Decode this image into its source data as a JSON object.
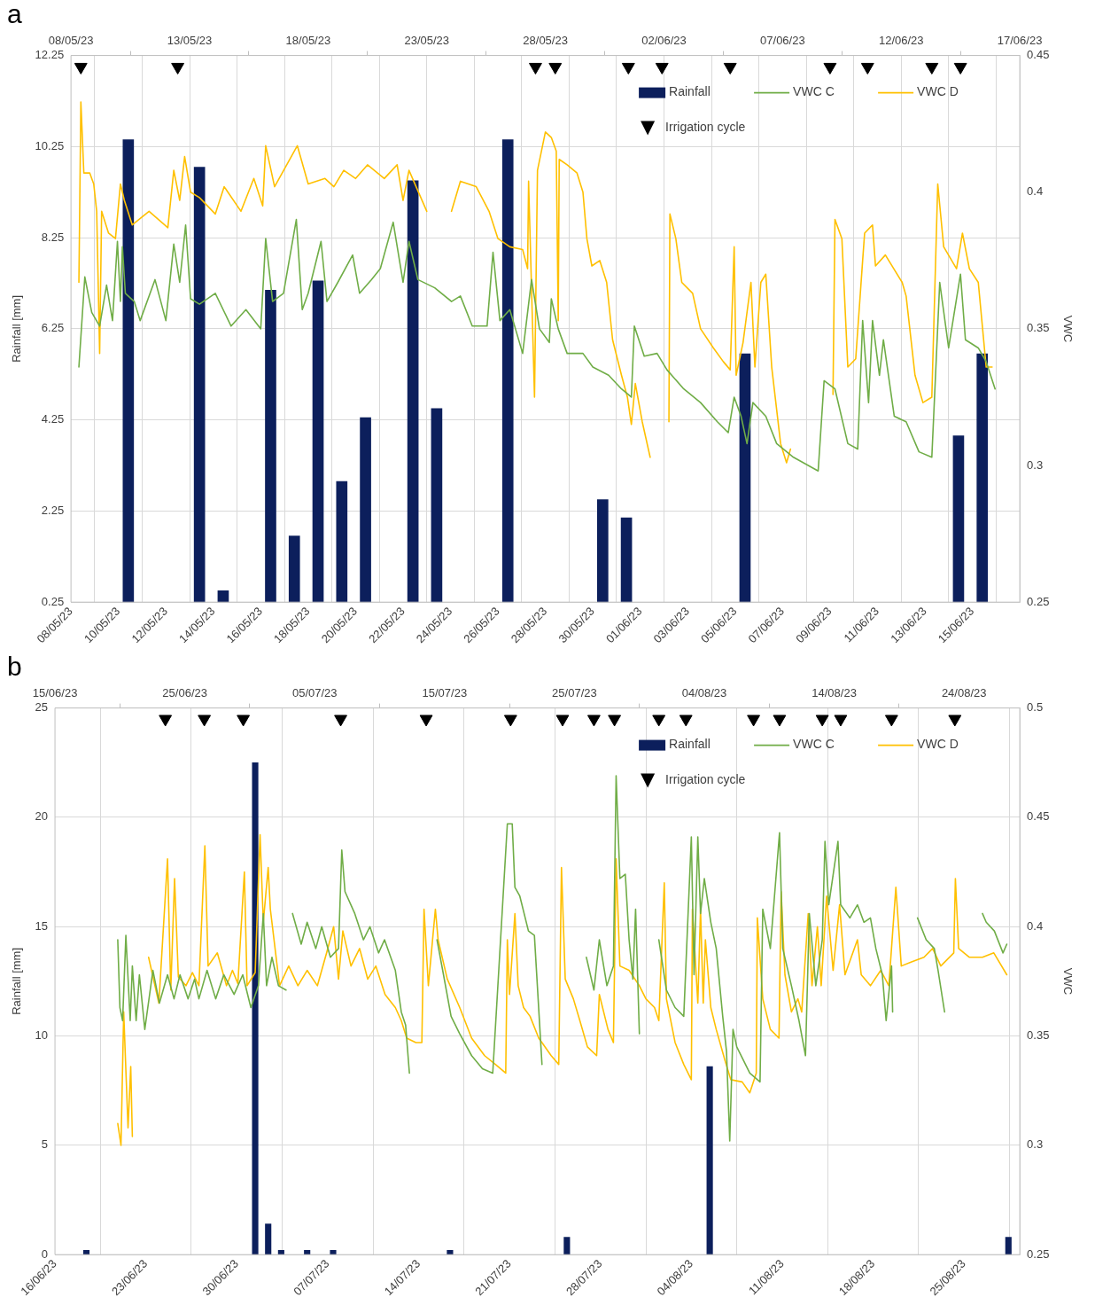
{
  "chart_data": [
    {
      "type": "bar",
      "title": "a",
      "ylabel": "Rainfall [mm]",
      "y2label": "VWC",
      "legend": "top right",
      "grid": true,
      "xlim": [
        "--05-08",
        "--06-17"
      ],
      "xticks": [
        {
          "value": "--05-08",
          "label": "08/05/23"
        },
        {
          "value": "--05-10",
          "label": "10/05/23"
        },
        {
          "value": "--05-12",
          "label": "12/05/23"
        },
        {
          "value": "--05-14",
          "label": "14/05/23"
        },
        {
          "value": "--05-16",
          "label": "16/05/23"
        },
        {
          "value": "--05-18",
          "label": "18/05/23"
        },
        {
          "value": "--05-20",
          "label": "20/05/23"
        },
        {
          "value": "--05-22",
          "label": "22/05/23"
        },
        {
          "value": "--05-24",
          "label": "24/05/23"
        },
        {
          "value": "--05-26",
          "label": "26/05/23"
        },
        {
          "value": "--05-28",
          "label": "28/05/23"
        },
        {
          "value": "--05-30",
          "label": "30/05/23"
        },
        {
          "value": "--06-01",
          "label": "01/06/23"
        },
        {
          "value": "--06-03",
          "label": "03/06/23"
        },
        {
          "value": "--06-05",
          "label": "05/06/23"
        },
        {
          "value": "--06-07",
          "label": "07/06/23"
        },
        {
          "value": "--06-09",
          "label": "09/06/23"
        },
        {
          "value": "--06-11",
          "label": "11/06/23"
        },
        {
          "value": "--06-13",
          "label": "13/06/23"
        },
        {
          "value": "--06-15",
          "label": "15/06/23"
        }
      ],
      "x2lim": [
        "--05-08",
        "--06-17"
      ],
      "x2ticks": [
        {
          "value": "--05-08",
          "label": "08/05/23"
        },
        {
          "value": "--05-13",
          "label": "13/05/23"
        },
        {
          "value": "--05-18",
          "label": "18/05/23"
        },
        {
          "value": "--05-23",
          "label": "23/05/23"
        },
        {
          "value": "--05-28",
          "label": "28/05/23"
        },
        {
          "value": "--06-02",
          "label": "02/06/23"
        },
        {
          "value": "--06-07",
          "label": "07/06/23"
        },
        {
          "value": "--06-12",
          "label": "12/06/23"
        },
        {
          "value": "--06-17",
          "label": "17/06/23"
        }
      ],
      "ylim": [
        0.25,
        12.25
      ],
      "yticks": [
        0.25,
        2.25,
        4.25,
        6.25,
        8.25,
        10.25,
        12.25
      ],
      "y2lim": [
        0.25,
        0.45
      ],
      "y2ticks": [
        0.25,
        0.3,
        0.35,
        0.4,
        0.45
      ],
      "series": [
        {
          "name": "Rainfall",
          "type": "bar",
          "color": "#0c1f5c",
          "x": [
            "--05-10T10:00",
            "--05-13T10:00",
            "--05-14T10:00",
            "--05-16T10:00",
            "--05-17T10:00",
            "--05-18T10:00",
            "--05-19T10:00",
            "--05-20T10:00",
            "--05-22T10:00",
            "--05-23T10:00",
            "--05-26T10:00",
            "--05-30T10:00",
            "--05-31T10:00",
            "--06-05T10:00",
            "--06-14T10:00",
            "--06-15T10:00"
          ],
          "values": [
            10.4,
            9.8,
            0.5,
            7.1,
            1.7,
            7.3,
            2.9,
            4.3,
            9.5,
            4.5,
            10.4,
            2.5,
            2.1,
            5.7,
            3.9,
            5.7
          ]
        },
        {
          "name": "VWC C",
          "type": "line",
          "axis": "y2",
          "color": "#70ad47",
          "x": [
            "--05-08T08:00",
            "--05-08T14:00",
            "--05-08T21:00",
            "--05-09T05:00",
            "--05-09T12:00",
            "--05-09T18:00",
            "--05-09T23:00",
            "--05-10T02:00",
            "--05-10T04:00",
            "--05-10T07:00",
            "--05-10T16:00",
            "--05-10T22:00",
            "--05-11T13:00",
            "--05-12T00:00",
            "--05-12T08:00",
            "--05-12T14:00",
            "--05-12T20:00",
            "--05-13T01:00",
            "--05-13T10:00",
            "--05-14T02:00",
            "--05-14T18:00",
            "--05-15T09:00",
            "--05-16T00:00",
            "--05-16T05:00",
            "--05-16T12:00",
            "--05-16T23:00",
            "--05-17T12:00",
            "--05-17T18:00",
            "--05-18T00:00",
            "--05-18T13:00",
            "--05-18T19:00",
            "--05-19T06:00",
            "--05-19T21:00",
            "--05-20T04:00",
            "--05-20T16:00",
            "--05-21T01:00",
            "--05-21T14:00",
            "--05-22T00:00",
            "--05-22T06:00",
            "--05-22T15:00",
            "--05-23T08:00",
            "--05-24T01:00",
            "--05-24T10:00",
            "--05-24T22:00",
            "--05-25T13:00",
            "--05-25T19:00",
            "--05-26T02:00",
            "--05-26T12:00",
            "--05-27T01:00",
            "--05-27T10:00",
            "--05-27T18:00",
            "--05-28T04:00",
            "--05-28T06:00",
            "--05-28T13:00",
            "--05-28T22:00",
            "--05-29T14:00",
            "--05-30T00:00",
            "--05-30T16:00",
            "--05-31T05:00",
            "--05-31T15:00",
            "--05-31T18:00",
            "--06-01T04:00",
            "--06-01T17:00",
            "--06-02T03:00",
            "--06-02T20:00",
            "--06-03T13:00",
            "--06-04T06:00",
            "--06-04T17:00",
            "--06-04T23:00",
            "--06-05T06:00",
            "--06-05T12:00",
            "--06-05T18:00",
            "--06-06T07:00",
            "--06-06T18:00",
            "--06-07T11:00",
            "--06-08T12:00",
            "--06-08T18:00",
            "--06-09T05:00",
            "--06-09T18:00",
            "--06-10T04:00",
            "--06-10T09:00",
            "--06-10T15:00",
            "--06-10T19:00",
            "--06-11T02:00",
            "--06-11T06:00",
            "--06-11T17:00",
            "--06-12T05:00",
            "--06-12T18:00",
            "--06-13T07:00",
            "--06-13T15:00",
            "--06-14T00:00",
            "--06-14T12:00",
            "--06-14T17:00",
            "--06-15T06:00",
            "--06-15T14:00",
            "--06-15T23:00"
          ],
          "values": [
            0.336,
            0.369,
            0.356,
            0.351,
            0.366,
            0.353,
            0.382,
            0.36,
            0.38,
            0.363,
            0.36,
            0.353,
            0.368,
            0.353,
            0.381,
            0.367,
            0.388,
            0.361,
            0.359,
            0.363,
            0.351,
            0.357,
            0.35,
            0.383,
            0.36,
            0.363,
            0.39,
            0.357,
            0.363,
            0.382,
            0.36,
            0.367,
            0.377,
            0.363,
            0.368,
            0.372,
            0.389,
            0.367,
            0.382,
            0.368,
            0.365,
            0.36,
            0.362,
            0.351,
            0.351,
            0.378,
            0.353,
            0.357,
            0.341,
            0.368,
            0.35,
            0.345,
            0.361,
            0.35,
            0.341,
            0.341,
            0.336,
            0.333,
            0.328,
            0.325,
            0.351,
            0.34,
            0.341,
            0.335,
            0.328,
            0.323,
            0.316,
            0.312,
            0.325,
            0.318,
            0.308,
            0.323,
            0.318,
            0.308,
            0.303,
            0.298,
            0.331,
            0.328,
            0.308,
            0.306,
            0.353,
            0.323,
            0.353,
            0.333,
            0.346,
            0.318,
            0.316,
            0.305,
            0.303,
            0.367,
            0.343,
            0.37,
            0.346,
            0.343,
            0.338,
            0.328
          ]
        },
        {
          "name": "VWC D",
          "type": "line",
          "axis": "y2",
          "color": "#ffc000",
          "x": [
            "--05-08T08:00",
            "--05-08T10:00",
            "--05-08T13:00",
            "--05-08T19:00",
            "--05-08T23:00",
            "--05-09T02:00",
            "--05-09T05:00",
            "--05-09T07:00",
            "--05-09T14:00",
            "--05-09T21:00",
            "--05-10T02:00",
            "--05-10T06:00",
            "--05-10T14:00",
            "--05-11T07:00",
            "--05-12T02:00",
            "--05-12T08:00",
            "--05-12T14:00",
            "--05-12T19:00",
            "--05-13T01:00",
            "--05-13T10:00",
            "--05-14T02:00",
            "--05-14T11:00",
            "--05-15T04:00",
            "--05-15T17:00",
            "--05-16T02:00",
            "--05-16T05:00",
            "--05-16T14:00",
            "--05-17T13:00",
            "--05-18T00:00",
            "--05-18T17:00",
            "--05-19T02:00",
            "--05-19T12:00",
            "--05-20T00:00",
            "--05-20T12:00",
            "--05-21T05:00",
            "--05-21T18:00",
            "--05-22T00:00",
            "--05-22T06:00",
            "--05-23T00:00",
            "--05-23T12:00",
            "--05-24T01:00",
            "--05-24T10:00",
            "--05-25T02:00",
            "--05-25T15:00",
            "--05-26T00:00",
            "--05-26T12:00",
            "--05-27T01:00",
            "--05-27T06:00",
            "--05-27T07:00",
            "--05-27T13:00",
            "--05-27T16:00",
            "--05-28T00:00",
            "--05-28T06:00",
            "--05-28T11:00",
            "--05-28T13:00",
            "--05-28T14:00",
            "--05-28T22:00",
            "--05-29T08:00",
            "--05-29T14:00",
            "--05-29T18:00",
            "--05-29T23:00",
            "--05-30T07:00",
            "--05-30T14:00",
            "--05-30T20:00",
            "--05-31T05:00",
            "--05-31T11:00",
            "--05-31T15:00",
            "--05-31T19:00",
            "--06-01T02:00",
            "--06-01T10:00",
            "--06-01T19:00",
            "--06-02T05:00",
            "--06-02T06:00",
            "--06-02T12:00",
            "--06-02T18:00",
            "--06-03T05:00",
            "--06-03T13:00",
            "--06-04T02:00",
            "--06-04T12:00",
            "--06-04T19:00",
            "--06-04T23:00",
            "--06-05T01:00",
            "--06-05T08:00",
            "--06-05T16:00",
            "--06-05T20:00",
            "--06-06T02:00",
            "--06-06T07:00",
            "--06-06T13:00",
            "--06-06T22:00",
            "--06-07T04:00",
            "--06-07T08:00",
            "--06-08T05:00",
            "--06-09T03:00",
            "--06-09T05:00",
            "--06-09T12:00",
            "--06-09T18:00",
            "--06-10T02:00",
            "--06-10T09:00",
            "--06-10T11:00",
            "--06-10T19:00",
            "--06-10T22:00",
            "--06-11T08:00",
            "--06-12T01:00",
            "--06-12T05:00",
            "--06-12T14:00",
            "--06-12T22:00",
            "--06-13T07:00",
            "--06-13T13:00",
            "--06-13T19:00",
            "--06-14T08:00",
            "--06-14T14:00",
            "--06-14T21:00",
            "--06-15T06:00",
            "--06-15T14:00",
            "--06-15T20:00"
          ],
          "values": [
            0.367,
            0.433,
            0.407,
            0.407,
            0.403,
            0.393,
            0.341,
            0.393,
            0.385,
            0.383,
            0.403,
            0.397,
            0.388,
            0.393,
            0.387,
            0.408,
            0.397,
            0.413,
            0.4,
            0.398,
            0.392,
            0.402,
            0.393,
            0.405,
            0.395,
            0.417,
            0.402,
            0.417,
            0.403,
            0.405,
            0.402,
            0.408,
            0.405,
            0.41,
            0.405,
            0.41,
            0.397,
            0.408,
            0.393,
            null,
            0.393,
            0.404,
            0.402,
            0.393,
            0.383,
            0.38,
            0.379,
            0.372,
            0.404,
            0.325,
            0.408,
            0.422,
            0.42,
            0.415,
            0.353,
            0.412,
            0.41,
            0.407,
            0.4,
            0.383,
            0.373,
            0.375,
            0.367,
            0.346,
            0.333,
            0.325,
            0.315,
            0.33,
            0.316,
            0.303,
            null,
            0.316,
            0.392,
            0.383,
            0.367,
            0.363,
            0.35,
            0.343,
            0.338,
            0.335,
            0.38,
            0.333,
            0.345,
            0.367,
            0.336,
            0.367,
            0.37,
            0.336,
            0.308,
            0.301,
            0.306,
            null,
            0.326,
            0.39,
            0.383,
            0.336,
            0.339,
            0.375,
            0.385,
            0.388,
            0.373,
            0.377,
            0.367,
            0.362,
            0.333,
            0.323,
            0.325,
            0.403,
            0.38,
            0.372,
            0.385,
            0.372,
            0.367,
            0.336,
            0.336
          ]
        },
        {
          "name": "Irrigation cycle",
          "type": "scatter",
          "marker": "triangle",
          "color": "#000000",
          "x": [
            "--05-08T10:00",
            "--05-12T12:00",
            "--05-27T14:00",
            "--05-28T10:00",
            "--05-31T12:00",
            "--06-01T22:00",
            "--06-04T19:00",
            "--06-09T00:00",
            "--06-10T14:00",
            "--06-13T07:00",
            "--06-14T12:00"
          ],
          "values": [
            12,
            12,
            12,
            12,
            12,
            12,
            12,
            12,
            12,
            12,
            12
          ]
        }
      ]
    },
    {
      "type": "bar",
      "title": "b",
      "ylabel": "Rainfall [mm]",
      "y2label": "VWC",
      "legend": "top right",
      "grid": true,
      "xlim": [
        "--06-16",
        "--08-29T07:00"
      ],
      "xticks": [
        {
          "value": "--06-16",
          "label": "16/06/23"
        },
        {
          "value": "--06-23",
          "label": "23/06/23"
        },
        {
          "value": "--06-30",
          "label": "30/06/23"
        },
        {
          "value": "--07-07",
          "label": "07/07/23"
        },
        {
          "value": "--07-14",
          "label": "14/07/23"
        },
        {
          "value": "--07-21",
          "label": "21/07/23"
        },
        {
          "value": "--07-28",
          "label": "28/07/23"
        },
        {
          "value": "--08-04",
          "label": "04/08/23"
        },
        {
          "value": "--08-11",
          "label": "11/08/23"
        },
        {
          "value": "--08-18",
          "label": "18/08/23"
        },
        {
          "value": "--08-25",
          "label": "25/08/23"
        }
      ],
      "x2lim": [
        "--06-15",
        "--08-28T07:00"
      ],
      "x2ticks": [
        {
          "value": "--06-15",
          "label": "15/06/23"
        },
        {
          "value": "--06-25",
          "label": "25/06/23"
        },
        {
          "value": "--07-05",
          "label": "05/07/23"
        },
        {
          "value": "--07-15",
          "label": "15/07/23"
        },
        {
          "value": "--07-25",
          "label": "25/07/23"
        },
        {
          "value": "--08-04",
          "label": "04/08/23"
        },
        {
          "value": "--08-14",
          "label": "14/08/23"
        },
        {
          "value": "--08-24",
          "label": "24/08/23"
        }
      ],
      "ylim": [
        0,
        25
      ],
      "yticks": [
        0,
        5,
        10,
        15,
        20,
        25
      ],
      "y2lim": [
        0.25,
        0.5
      ],
      "y2ticks": [
        0.25,
        0.3,
        0.35,
        0.4,
        0.45,
        0.5
      ],
      "series": [
        {
          "name": "Rainfall",
          "type": "bar",
          "color": "#0c1f5c",
          "x": [
            "--06-18T10:00",
            "--07-01T10:00",
            "--07-02T10:00",
            "--07-03T10:00",
            "--07-05T10:00",
            "--07-07T10:00",
            "--07-16T10:00",
            "--07-25T10:00",
            "--08-05T10:00",
            "--08-28T10:00"
          ],
          "values": [
            0.2,
            22.5,
            1.4,
            0.2,
            0.2,
            0.2,
            0.2,
            0.8,
            8.6,
            0.8
          ]
        },
        {
          "name": "VWC C",
          "type": "line",
          "axis": "y2",
          "color": "#70ad47",
          "x": [
            "--06-20T20:00",
            "--06-21T00:00",
            "--06-21T05:00",
            "--06-21T11:00",
            "--06-21T19:00",
            "--06-21T23:00",
            "--06-22T06:00",
            "--06-22T12:00",
            "--06-22T22:00",
            "--06-23T13:00",
            "--06-24T01:00",
            "--06-24T16:00",
            "--06-25T04:00",
            "--06-25T15:00",
            "--06-26T06:00",
            "--06-26T18:00",
            "--06-27T02:00",
            "--06-27T17:00",
            "--06-28T09:00",
            "--06-29T00:00",
            "--06-29T19:00",
            "--06-30T11:00",
            "--07-01T02:00",
            "--07-01T16:00",
            "--07-02T01:00",
            "--07-02T07:00",
            "--07-02T17:00",
            "--07-03T05:00",
            "--07-03T19:00",
            "--07-04T00:00",
            "--07-04T07:00",
            "--07-04T23:00",
            "--07-05T10:00",
            "--07-06T02:00",
            "--07-06T13:00",
            "--07-07T05:00",
            "--07-07T20:00",
            "--07-08T02:00",
            "--07-08T08:00",
            "--07-09T02:00",
            "--07-09T18:00",
            "--07-10T06:00",
            "--07-10T22:00",
            "--07-11T09:00",
            "--07-12T05:00",
            "--07-12T16:00",
            "--07-13T00:00",
            "--07-13T07:00",
            "--07-14T10:00",
            "--07-15T10:00",
            "--07-15T22:00",
            "--07-16T12:00",
            "--07-17T04:00",
            "--07-18T02:00",
            "--07-18T22:00",
            "--07-19T17:00",
            "--07-20T20:00",
            "--07-21T05:00",
            "--07-21T10:00",
            "--07-21T19:00",
            "--07-22T11:00",
            "--07-22T22:00",
            "--07-23T12:00",
            "--07-25T00:00",
            "--07-26T22:00",
            "--07-27T12:00",
            "--07-27T22:00",
            "--07-28T12:00",
            "--07-29T00:00",
            "--07-29T05:00",
            "--07-29T12:00",
            "--07-29T22:00",
            "--07-30T05:00",
            "--07-30T12:00",
            "--07-30T17:00",
            "--07-31T00:00",
            "--07-31T17:00",
            "--08-01T12:00",
            "--08-02T02:00",
            "--08-02T18:00",
            "--08-03T10:00",
            "--08-04T00:00",
            "--08-04T05:00",
            "--08-04T12:00",
            "--08-04T17:00",
            "--08-05T00:00",
            "--08-05T12:00",
            "--08-05T22:00",
            "--08-06T10:00",
            "--08-06T17:00",
            "--08-06T23:00",
            "--08-07T05:00",
            "--08-07T12:00",
            "--08-08T12:00",
            "--08-09T07:00",
            "--08-09T12:00",
            "--08-10T02:00",
            "--08-10T19:00",
            "--08-11T01:00",
            "--08-11T17:00",
            "--08-12T07:00",
            "--08-12T19:00",
            "--08-13T02:00",
            "--08-13T14:00",
            "--08-14T02:00",
            "--08-14T07:00",
            "--08-14T14:00",
            "--08-15T07:00",
            "--08-15T12:00",
            "--08-16T05:00",
            "--08-16T19:00",
            "--08-17T07:00",
            "--08-17T19:00",
            "--08-18T05:00",
            "--08-18T17:00",
            "--08-19T00:00",
            "--08-19T10:00",
            "--08-19T12:00",
            "--08-20T12:00",
            "--08-21T10:00",
            "--08-22T02:00",
            "--08-22T17:00",
            "--08-23T00:00",
            "--08-23T12:00",
            "--08-25T00:00",
            "--08-26T10:00",
            "--08-26T17:00",
            "--08-27T08:00",
            "--08-28T00:00",
            "--08-28T07:00"
          ],
          "values": [
            0.394,
            0.363,
            0.357,
            0.396,
            0.357,
            0.382,
            0.357,
            0.378,
            0.353,
            0.38,
            0.365,
            0.378,
            0.367,
            0.378,
            0.367,
            0.376,
            0.367,
            0.38,
            0.367,
            0.378,
            0.369,
            0.378,
            0.363,
            0.373,
            0.406,
            0.373,
            0.386,
            0.373,
            0.371,
            null,
            0.406,
            0.392,
            0.402,
            0.39,
            0.4,
            0.386,
            0.39,
            0.435,
            0.416,
            0.406,
            0.394,
            0.4,
            0.388,
            0.394,
            0.38,
            0.361,
            0.355,
            0.333,
            null,
            0.394,
            0.378,
            0.359,
            0.351,
            0.341,
            0.335,
            0.333,
            0.447,
            0.447,
            0.418,
            0.414,
            0.398,
            0.396,
            0.337,
            null,
            0.386,
            0.371,
            0.394,
            0.373,
            0.382,
            0.469,
            0.422,
            0.424,
            0.394,
            0.376,
            0.408,
            0.351,
            null,
            0.394,
            0.371,
            0.363,
            0.359,
            0.441,
            0.378,
            0.441,
            0.406,
            0.422,
            0.402,
            0.39,
            0.359,
            0.343,
            0.302,
            0.353,
            0.345,
            0.333,
            0.329,
            0.408,
            0.39,
            0.443,
            0.39,
            0.373,
            0.357,
            0.341,
            0.406,
            0.373,
            0.394,
            0.439,
            0.41,
            0.439,
            0.41,
            0.404,
            0.41,
            0.402,
            0.404,
            0.39,
            0.378,
            0.357,
            0.382,
            0.361,
            null,
            0.404,
            0.394,
            0.39,
            0.38,
            0.361,
            null,
            0.406,
            0.402,
            0.398,
            0.388,
            0.392
          ]
        },
        {
          "name": "VWC D",
          "type": "line",
          "axis": "y2",
          "color": "#ffc000",
          "x": [
            "--06-20T20:00",
            "--06-21T02:00",
            "--06-21T07:00",
            "--06-21T15:00",
            "--06-21T20:00",
            "--06-21T23:00",
            "--06-22T12:00",
            "--06-23T05:00",
            "--06-24T00:00",
            "--06-24T16:00",
            "--06-24T22:00",
            "--06-25T05:00",
            "--06-25T12:00",
            "--06-26T02:00",
            "--06-26T14:00",
            "--06-27T02:00",
            "--06-27T13:00",
            "--06-27T19:00",
            "--06-28T12:00",
            "--06-29T05:00",
            "--06-29T16:00",
            "--06-30T02:00",
            "--06-30T14:00",
            "--06-30T19:00",
            "--07-01T10:00",
            "--07-01T19:00",
            "--07-02T01:00",
            "--07-02T10:00",
            "--07-02T14:00",
            "--07-03T07:00",
            "--07-04T00:00",
            "--07-04T17:00",
            "--07-05T10:00",
            "--07-06T05:00",
            "--07-06T22:00",
            "--07-07T11:00",
            "--07-07T20:00",
            "--07-08T04:00",
            "--07-08T19:00",
            "--07-09T11:00",
            "--07-10T02:00",
            "--07-10T17:00",
            "--07-11T10:00",
            "--07-12T05:00",
            "--07-12T16:00",
            "--07-13T02:00",
            "--07-13T19:00",
            "--07-14T06:00",
            "--07-14T10:00",
            "--07-14T18:00",
            "--07-15T07:00",
            "--07-15T12:00",
            "--07-16T05:00",
            "--07-17T04:00",
            "--07-18T02:00",
            "--07-19T02:00",
            "--07-19T22:00",
            "--07-20T17:00",
            "--07-20T20:00",
            "--07-21T00:00",
            "--07-21T10:00",
            "--07-21T16:00",
            "--07-22T02:00",
            "--07-22T14:00",
            "--07-23T06:00",
            "--07-23T12:00",
            "--07-24T05:00",
            "--07-24T19:00",
            "--07-25T00:00",
            "--07-25T07:00",
            "--07-25T22:00",
            "--07-26T10:00",
            "--07-27T00:00",
            "--07-27T17:00",
            "--07-27T22:00",
            "--07-28T14:00",
            "--07-29T00:00",
            "--07-29T05:00",
            "--07-29T12:00",
            "--07-30T05:00",
            "--07-31T00:00",
            "--07-31T12:00",
            "--08-01T04:00",
            "--08-01T12:00",
            "--08-01T22:00",
            "--08-02T02:00",
            "--08-02T18:00",
            "--08-03T10:00",
            "--08-04T00:00",
            "--08-04T02:00",
            "--08-04T12:00",
            "--08-04T17:00",
            "--08-04T22:00",
            "--08-05T02:00",
            "--08-05T12:00",
            "--08-05T22:00",
            "--08-06T14:00",
            "--08-07T01:00",
            "--08-07T22:00",
            "--08-08T12:00",
            "--08-09T00:00",
            "--08-09T02:00",
            "--08-09T12:00",
            "--08-10T02:00",
            "--08-10T18:00",
            "--08-10T22:00",
            "--08-11T05:00",
            "--08-11T17:00",
            "--08-12T05:00",
            "--08-12T12:00",
            "--08-13T00:00",
            "--08-13T07:00",
            "--08-13T17:00",
            "--08-14T00:00",
            "--08-14T10:00",
            "--08-14T22:00",
            "--08-15T10:00",
            "--08-15T20:00",
            "--08-16T19:00",
            "--08-17T02:00",
            "--08-17T19:00",
            "--08-18T14:00",
            "--08-19T05:00",
            "--08-19T18:00",
            "--08-20T04:00",
            "--08-21T00:00",
            "--08-21T22:00",
            "--08-22T14:00",
            "--08-23T05:00",
            "--08-24T05:00",
            "--08-24T08:00",
            "--08-24T14:00",
            "--08-25T10:00",
            "--08-26T10:00",
            "--08-27T07:00",
            "--08-28T07:00"
          ],
          "values": [
            0.31,
            0.3,
            0.361,
            0.308,
            0.336,
            0.304,
            null,
            0.386,
            0.365,
            0.431,
            0.371,
            0.422,
            0.377,
            0.373,
            0.379,
            0.373,
            0.437,
            0.382,
            0.388,
            0.373,
            0.38,
            0.374,
            0.425,
            0.373,
            0.379,
            0.442,
            0.402,
            0.427,
            0.408,
            0.373,
            0.382,
            0.373,
            0.38,
            0.373,
            0.388,
            0.4,
            0.376,
            0.398,
            0.382,
            0.39,
            0.376,
            0.382,
            0.369,
            0.363,
            0.357,
            0.349,
            0.347,
            0.347,
            0.408,
            0.373,
            0.408,
            0.394,
            0.376,
            0.363,
            0.349,
            0.341,
            0.337,
            0.333,
            0.394,
            0.369,
            0.406,
            0.373,
            0.363,
            0.359,
            0.349,
            0.347,
            0.341,
            0.337,
            0.427,
            0.376,
            0.367,
            0.357,
            0.345,
            0.341,
            0.369,
            0.353,
            0.347,
            0.431,
            0.382,
            0.38,
            0.373,
            0.367,
            0.363,
            0.357,
            0.42,
            0.367,
            0.347,
            0.337,
            0.33,
            0.408,
            0.365,
            0.408,
            0.365,
            0.394,
            0.363,
            0.353,
            0.339,
            0.33,
            0.329,
            0.324,
            0.333,
            0.404,
            0.367,
            0.353,
            0.349,
            0.416,
            0.378,
            0.361,
            0.367,
            0.361,
            0.406,
            0.373,
            0.4,
            0.373,
            0.414,
            0.38,
            0.41,
            0.378,
            0.394,
            0.378,
            0.373,
            0.38,
            0.373,
            0.418,
            0.382,
            0.384,
            0.386,
            0.39,
            0.382,
            0.388,
            0.422,
            0.39,
            0.386,
            0.386,
            0.388,
            0.378
          ]
        },
        {
          "name": "Irrigation cycle",
          "type": "scatter",
          "marker": "triangle",
          "color": "#000000",
          "x": [
            "--06-24T12:00",
            "--06-27T12:00",
            "--06-30T12:00",
            "--07-08T00:00",
            "--07-14T14:00",
            "--07-21T02:00",
            "--07-25T02:00",
            "--07-27T12:00",
            "--07-29T02:00",
            "--08-01T12:00",
            "--08-03T14:00",
            "--08-08T19:00",
            "--08-10T19:00",
            "--08-14T02:00",
            "--08-15T12:00",
            "--08-19T10:00",
            "--08-24T07:00"
          ],
          "values": [
            24.5,
            24.5,
            24.5,
            24.5,
            24.5,
            24.5,
            24.5,
            24.5,
            24.5,
            24.5,
            24.5,
            24.5,
            24.5,
            24.5,
            24.5,
            24.5,
            24.5
          ]
        }
      ]
    }
  ]
}
